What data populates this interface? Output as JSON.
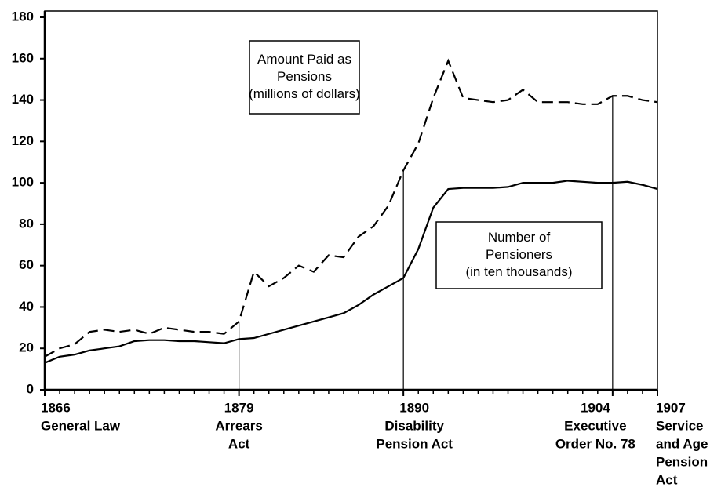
{
  "chart_data": {
    "type": "line",
    "x": [
      1866,
      1867,
      1868,
      1869,
      1870,
      1871,
      1872,
      1873,
      1874,
      1875,
      1876,
      1877,
      1878,
      1879,
      1880,
      1881,
      1882,
      1883,
      1884,
      1885,
      1886,
      1887,
      1888,
      1889,
      1890,
      1891,
      1892,
      1893,
      1894,
      1895,
      1896,
      1897,
      1898,
      1899,
      1900,
      1901,
      1902,
      1903,
      1904,
      1905,
      1906,
      1907
    ],
    "series": [
      {
        "name": "Amount Paid as Pensions (millions of dollars)",
        "color": "#000000",
        "dashed": true,
        "values": [
          16,
          20,
          22,
          28,
          29,
          28,
          29,
          27,
          30,
          29,
          28,
          28,
          27,
          33,
          57,
          50,
          54,
          60,
          57,
          65,
          64,
          74,
          79,
          89,
          106,
          119,
          141,
          159,
          141,
          140,
          139,
          140,
          145,
          139,
          139,
          139,
          138,
          138,
          142,
          142,
          140,
          139
        ]
      },
      {
        "name": "Number of Pensioners (in ten thousands)",
        "color": "#000000",
        "dashed": false,
        "values": [
          13,
          16,
          17,
          19,
          20,
          21,
          23.5,
          24,
          24,
          23.5,
          23.5,
          23,
          22.5,
          24.5,
          25,
          27,
          29,
          31,
          33,
          35,
          37,
          41,
          46,
          50,
          54,
          68,
          88,
          97,
          97.5,
          97.5,
          97.5,
          98,
          100,
          100,
          100,
          101,
          100.5,
          100,
          100,
          100.5,
          99,
          97
        ]
      }
    ],
    "annotations": [
      {
        "lines": [
          "Amount Paid as",
          "Pensions",
          "(millions of dollars)"
        ]
      },
      {
        "lines": [
          "Number of",
          "Pensioners",
          "(in ten thousands)"
        ]
      }
    ],
    "xlim": [
      1866,
      1907
    ],
    "ylim": [
      0,
      180
    ],
    "yticks": [
      0,
      20,
      40,
      60,
      80,
      100,
      120,
      140,
      160,
      180
    ],
    "xticks": [
      1866,
      1879,
      1890,
      1904,
      1907
    ],
    "events": [
      {
        "year": 1866,
        "label": [
          "General Law"
        ]
      },
      {
        "year": 1879,
        "label": [
          "Arrears",
          "Act"
        ]
      },
      {
        "year": 1890,
        "label": [
          "Disability",
          "Pension Act"
        ]
      },
      {
        "year": 1904,
        "label": [
          "Executive",
          "Order No. 78"
        ]
      },
      {
        "year": 1907,
        "label": [
          "Service",
          "and Age",
          "Pension",
          "Act"
        ]
      }
    ]
  }
}
